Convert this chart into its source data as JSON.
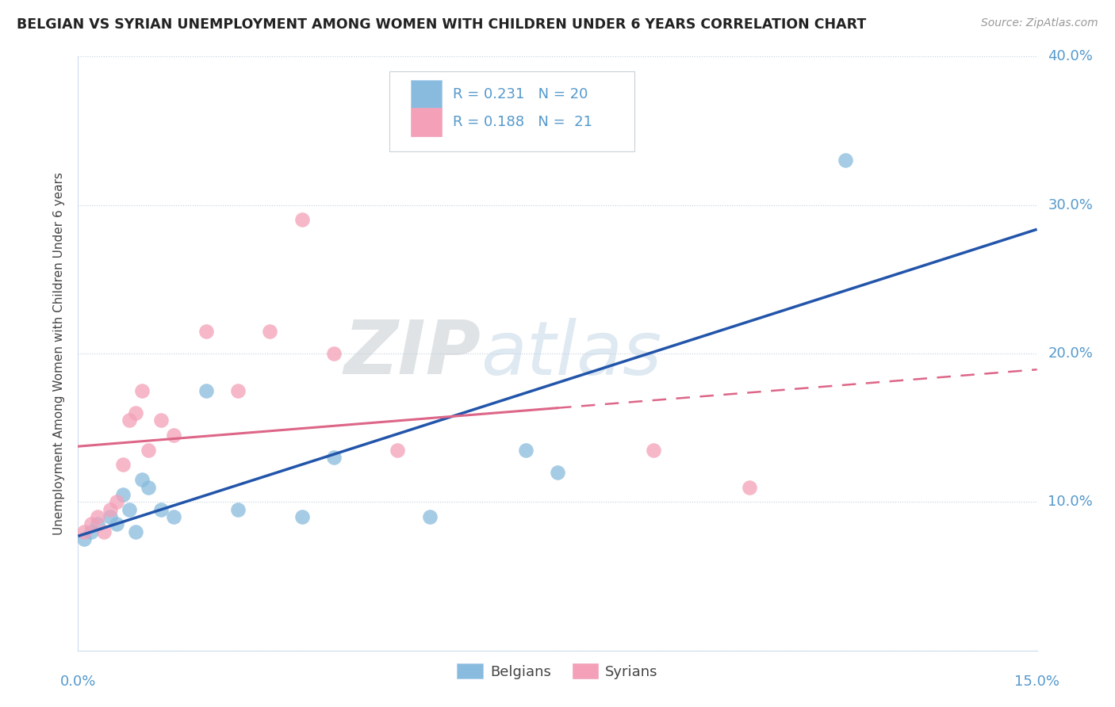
{
  "title": "BELGIAN VS SYRIAN UNEMPLOYMENT AMONG WOMEN WITH CHILDREN UNDER 6 YEARS CORRELATION CHART",
  "source": "Source: ZipAtlas.com",
  "ylabel": "Unemployment Among Women with Children Under 6 years",
  "xlim": [
    0.0,
    0.15
  ],
  "ylim": [
    0.0,
    0.4
  ],
  "yticks": [
    0.0,
    0.1,
    0.2,
    0.3,
    0.4
  ],
  "ytick_labels": [
    "",
    "10.0%",
    "20.0%",
    "30.0%",
    "40.0%"
  ],
  "xticks": [
    0.0,
    0.015,
    0.03,
    0.045,
    0.06,
    0.075,
    0.09,
    0.105,
    0.12,
    0.135,
    0.15
  ],
  "watermark_zip": "ZIP",
  "watermark_atlas": "atlas",
  "belgians_x": [
    0.001,
    0.002,
    0.003,
    0.005,
    0.006,
    0.007,
    0.008,
    0.009,
    0.01,
    0.011,
    0.013,
    0.015,
    0.02,
    0.025,
    0.035,
    0.04,
    0.055,
    0.07,
    0.075,
    0.12
  ],
  "belgians_y": [
    0.075,
    0.08,
    0.085,
    0.09,
    0.085,
    0.105,
    0.095,
    0.08,
    0.115,
    0.11,
    0.095,
    0.09,
    0.175,
    0.095,
    0.09,
    0.13,
    0.09,
    0.135,
    0.12,
    0.33
  ],
  "syrians_x": [
    0.001,
    0.002,
    0.003,
    0.004,
    0.005,
    0.006,
    0.007,
    0.008,
    0.009,
    0.01,
    0.011,
    0.013,
    0.015,
    0.02,
    0.025,
    0.03,
    0.035,
    0.04,
    0.05,
    0.09,
    0.105
  ],
  "syrians_y": [
    0.08,
    0.085,
    0.09,
    0.08,
    0.095,
    0.1,
    0.125,
    0.155,
    0.16,
    0.175,
    0.135,
    0.155,
    0.145,
    0.215,
    0.175,
    0.215,
    0.29,
    0.2,
    0.135,
    0.135,
    0.11
  ],
  "belgian_color": "#88bbdd",
  "syrian_color": "#f4a0b8",
  "belgian_line_color": "#2255aa",
  "syrian_line_color": "#dd6688",
  "background_color": "#ffffff",
  "grid_color": "#c0d0e0",
  "title_color": "#222222",
  "axis_label_color": "#5599cc",
  "legend_box_color": "#e8ecf0",
  "legend_box_edge": "#c8d0d8"
}
